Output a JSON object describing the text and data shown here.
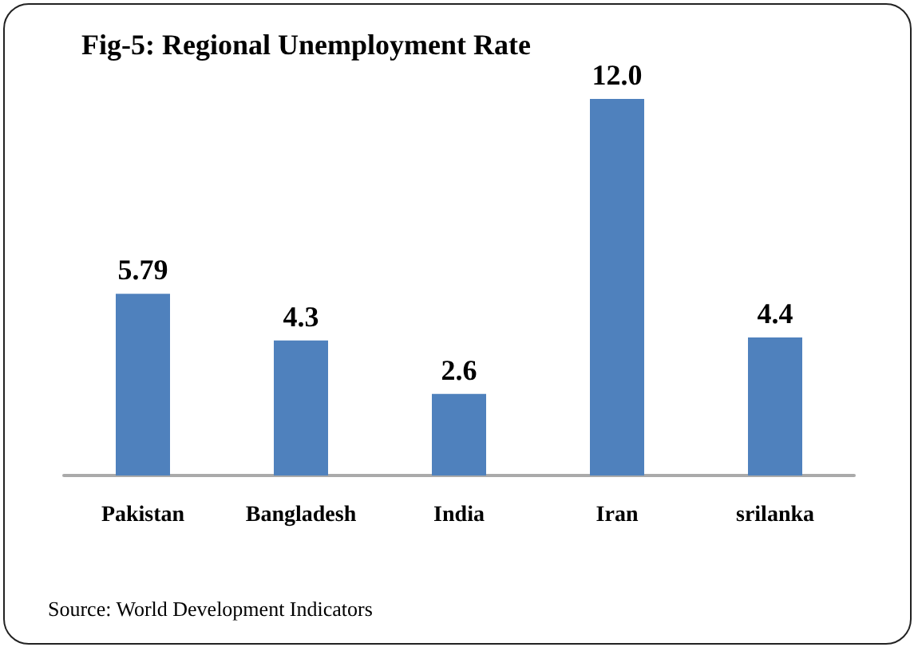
{
  "chart_data": {
    "type": "bar",
    "title": "Fig-5: Regional Unemployment Rate",
    "categories": [
      "Pakistan",
      "Bangladesh",
      "India",
      "Iran",
      "srilanka"
    ],
    "values": [
      5.79,
      4.3,
      2.6,
      12.0,
      4.4
    ],
    "value_labels": [
      "5.79",
      "4.3",
      "2.6",
      "12.0",
      "4.4"
    ],
    "color": "#4f81bd",
    "annotations": [
      "Source: World Development Indicators"
    ]
  }
}
